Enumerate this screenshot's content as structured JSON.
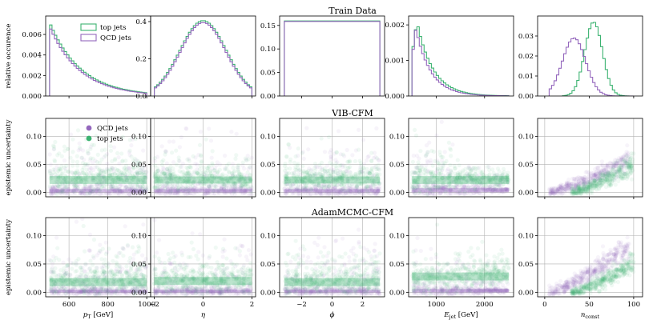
{
  "figure": {
    "row_titles": [
      "Train Data",
      "VIB-CFM",
      "AdamMCMC-CFM"
    ],
    "row_ylabels": [
      "relative occurence",
      "epistemic uncertainty",
      "epistemic uncertainty"
    ],
    "legend_row0": [
      "top jets",
      "QCD jets"
    ],
    "legend_row1": [
      "QCD jets",
      "top jets"
    ],
    "xlabels": [
      "p_T [GeV]",
      "η",
      "ϕ",
      "E_jet [GeV]",
      "n_const"
    ]
  },
  "colors": {
    "qcd": "#9467bd",
    "top": "#3cb371",
    "grid": "#b0b0b0",
    "axis": "#000000"
  },
  "chart_data": [
    {
      "type": "histogram",
      "row": 0,
      "col": 0,
      "xlabel": "p_T [GeV]",
      "ylabel": "relative occurence",
      "xlim": [
        480,
        1020
      ],
      "ylim": [
        0,
        0.0078
      ],
      "xticks": [
        600,
        800,
        1000
      ],
      "xtick_labels_shown": false,
      "yticks": [
        0.0,
        0.002,
        0.004,
        0.006
      ],
      "ytick_labels": [
        "0.000",
        "0.002",
        "0.004",
        "0.006"
      ],
      "series": [
        {
          "name": "top jets",
          "color_key": "top",
          "bin_edges": [
            500,
            1000
          ],
          "nbins": 40,
          "model": "exp",
          "params": {
            "a": 0.0072,
            "tau": 160
          }
        },
        {
          "name": "QCD jets",
          "color_key": "qcd",
          "bin_edges": [
            500,
            1000
          ],
          "nbins": 40,
          "model": "exp",
          "params": {
            "a": 0.0068,
            "tau": 155
          }
        }
      ]
    },
    {
      "type": "histogram",
      "row": 0,
      "col": 1,
      "xlabel": "η",
      "xlim": [
        -2.15,
        2.15
      ],
      "ylim": [
        0,
        0.43
      ],
      "xticks": [
        -2,
        0,
        2
      ],
      "xtick_labels_shown": false,
      "yticks": [
        0.0,
        0.2,
        0.4
      ],
      "ytick_labels": [
        "0.0",
        "0.2",
        "0.4"
      ],
      "series": [
        {
          "name": "top jets",
          "color_key": "top",
          "bin_edges": [
            -2,
            2
          ],
          "nbins": 40,
          "model": "gauss",
          "params": {
            "a": 0.405,
            "mu": 0,
            "sigma": 0.95
          }
        },
        {
          "name": "QCD jets",
          "color_key": "qcd",
          "bin_edges": [
            -2,
            2
          ],
          "nbins": 40,
          "model": "gauss",
          "params": {
            "a": 0.395,
            "mu": 0,
            "sigma": 0.93
          }
        }
      ]
    },
    {
      "type": "histogram",
      "row": 0,
      "col": 2,
      "xlabel": "ϕ",
      "xlim": [
        -3.45,
        3.45
      ],
      "ylim": [
        0,
        0.17
      ],
      "xticks": [
        -2,
        0,
        2
      ],
      "xtick_labels_shown": false,
      "yticks": [
        0.0,
        0.05,
        0.1,
        0.15
      ],
      "ytick_labels": [
        "0.00",
        "0.05",
        "0.10",
        "0.15"
      ],
      "series": [
        {
          "name": "top jets",
          "color_key": "top",
          "bin_edges": [
            -3.14,
            3.14
          ],
          "nbins": 40,
          "model": "flat",
          "params": {
            "a": 0.1595
          }
        },
        {
          "name": "QCD jets",
          "color_key": "qcd",
          "bin_edges": [
            -3.14,
            3.14
          ],
          "nbins": 40,
          "model": "flat",
          "params": {
            "a": 0.1585
          }
        }
      ]
    },
    {
      "type": "histogram",
      "row": 0,
      "col": 3,
      "xlabel": "E_jet [GeV]",
      "xlim": [
        430,
        2600
      ],
      "ylim": [
        0,
        0.00225
      ],
      "xticks": [
        1000,
        2000
      ],
      "xtick_labels_shown": false,
      "yticks": [
        0.0,
        0.001,
        0.002
      ],
      "ytick_labels": [
        "0.000",
        "0.001",
        "0.002"
      ],
      "series": [
        {
          "name": "top jets",
          "color_key": "top",
          "bin_edges": [
            500,
            2500
          ],
          "nbins": 40,
          "model": "rise_exp",
          "params": {
            "a": 0.0021,
            "peak": 600,
            "tau": 330
          }
        },
        {
          "name": "QCD jets",
          "color_key": "qcd",
          "bin_edges": [
            500,
            2500
          ],
          "nbins": 40,
          "model": "rise_exp",
          "params": {
            "a": 0.0019,
            "peak": 580,
            "tau": 310
          }
        }
      ]
    },
    {
      "type": "histogram",
      "row": 0,
      "col": 4,
      "xlabel": "n_const",
      "xlim": [
        -8,
        110
      ],
      "ylim": [
        0,
        0.04
      ],
      "xticks": [
        0,
        50,
        100
      ],
      "xtick_labels_shown": false,
      "yticks": [
        0.0,
        0.01,
        0.02,
        0.03
      ],
      "ytick_labels": [
        "0.00",
        "0.01",
        "0.02",
        "0.03"
      ],
      "series": [
        {
          "name": "top jets",
          "color_key": "top",
          "bin_edges": [
            20,
            100
          ],
          "nbins": 30,
          "model": "gauss",
          "params": {
            "a": 0.037,
            "mu": 55,
            "sigma": 10
          }
        },
        {
          "name": "QCD jets",
          "color_key": "qcd",
          "bin_edges": [
            5,
            100
          ],
          "nbins": 35,
          "model": "gauss",
          "params": {
            "a": 0.029,
            "mu": 33,
            "sigma": 13
          }
        }
      ]
    },
    {
      "type": "scatter",
      "row": 1,
      "col": 0,
      "xlabel": "p_T [GeV]",
      "ylabel": "epistemic uncertainty",
      "xlim": [
        480,
        1020
      ],
      "ylim": [
        -0.008,
        0.132
      ],
      "xticks": [
        600,
        800,
        1000
      ],
      "xtick_labels_shown": false,
      "yticks": [
        0.0,
        0.05,
        0.1
      ],
      "ytick_labels": [
        "0.00",
        "0.05",
        "0.10"
      ],
      "series": [
        {
          "name": "QCD jets",
          "color_key": "qcd",
          "x_range": [
            500,
            1000
          ],
          "model": "band",
          "params": {
            "center": 0.003,
            "spread": 0.004,
            "tail": 0.085
          }
        },
        {
          "name": "top jets",
          "color_key": "top",
          "x_range": [
            500,
            1000
          ],
          "model": "band",
          "params": {
            "center": 0.022,
            "spread": 0.01,
            "tail": 0.06
          }
        }
      ]
    },
    {
      "type": "scatter",
      "row": 1,
      "col": 1,
      "xlabel": "η",
      "xlim": [
        -2.15,
        2.15
      ],
      "ylim": [
        -0.008,
        0.132
      ],
      "xticks": [
        -2,
        0,
        2
      ],
      "xtick_labels_shown": false,
      "yticks": [
        0.0,
        0.05,
        0.1
      ],
      "ytick_labels": [
        "0.00",
        "0.05",
        "0.10"
      ],
      "series": [
        {
          "name": "QCD jets",
          "color_key": "qcd",
          "x_range": [
            -2,
            2
          ],
          "model": "band",
          "params": {
            "center": 0.003,
            "spread": 0.004,
            "tail": 0.085
          }
        },
        {
          "name": "top jets",
          "color_key": "top",
          "x_range": [
            -2,
            2
          ],
          "model": "band",
          "params": {
            "center": 0.022,
            "spread": 0.009,
            "tail": 0.05
          }
        }
      ]
    },
    {
      "type": "scatter",
      "row": 1,
      "col": 2,
      "xlabel": "ϕ",
      "xlim": [
        -3.45,
        3.45
      ],
      "ylim": [
        -0.008,
        0.132
      ],
      "xticks": [
        -2,
        0,
        2
      ],
      "xtick_labels_shown": false,
      "yticks": [
        0.0,
        0.05,
        0.1
      ],
      "ytick_labels": [
        "0.00",
        "0.05",
        "0.10"
      ],
      "series": [
        {
          "name": "QCD jets",
          "color_key": "qcd",
          "x_range": [
            -3.14,
            3.14
          ],
          "model": "band",
          "params": {
            "center": 0.003,
            "spread": 0.004,
            "tail": 0.085
          }
        },
        {
          "name": "top jets",
          "color_key": "top",
          "x_range": [
            -3.14,
            3.14
          ],
          "model": "band",
          "params": {
            "center": 0.022,
            "spread": 0.009,
            "tail": 0.05
          }
        }
      ]
    },
    {
      "type": "scatter",
      "row": 1,
      "col": 3,
      "xlabel": "E_jet [GeV]",
      "xlim": [
        430,
        2600
      ],
      "ylim": [
        -0.008,
        0.132
      ],
      "xticks": [
        1000,
        2000
      ],
      "xtick_labels_shown": false,
      "yticks": [
        0.0,
        0.05,
        0.1
      ],
      "ytick_labels": [
        "0.00",
        "0.05",
        "0.10"
      ],
      "series": [
        {
          "name": "QCD jets",
          "color_key": "qcd",
          "x_range": [
            500,
            2500
          ],
          "model": "decay",
          "params": {
            "center": 0.004,
            "spread": 0.005,
            "tail": 0.09
          }
        },
        {
          "name": "top jets",
          "color_key": "top",
          "x_range": [
            500,
            2500
          ],
          "model": "decay",
          "params": {
            "center": 0.022,
            "spread": 0.01,
            "tail": 0.06
          }
        }
      ]
    },
    {
      "type": "scatter",
      "row": 1,
      "col": 4,
      "xlabel": "n_const",
      "xlim": [
        -8,
        110
      ],
      "ylim": [
        -0.008,
        0.132
      ],
      "xticks": [
        0,
        50,
        100
      ],
      "xtick_labels_shown": false,
      "yticks": [
        0.0,
        0.05,
        0.1
      ],
      "ytick_labels": [
        "0.00",
        "0.05",
        "0.10"
      ],
      "series": [
        {
          "name": "QCD jets",
          "color_key": "qcd",
          "x_range": [
            5,
            95
          ],
          "model": "rise",
          "params": {
            "center": 0.0,
            "spread": 0.006,
            "tail": 0.06
          }
        },
        {
          "name": "top jets",
          "color_key": "top",
          "x_range": [
            30,
            100
          ],
          "model": "rise",
          "params": {
            "center": 0.0,
            "spread": 0.006,
            "tail": 0.05
          }
        }
      ]
    },
    {
      "type": "scatter",
      "row": 2,
      "col": 0,
      "xlabel": "p_T [GeV]",
      "ylabel": "epistemic uncertainty",
      "xlim": [
        480,
        1020
      ],
      "ylim": [
        -0.008,
        0.132
      ],
      "xticks": [
        600,
        800,
        1000
      ],
      "xtick_labels": [
        "600",
        "800",
        "1000"
      ],
      "yticks": [
        0.0,
        0.05,
        0.1
      ],
      "ytick_labels": [
        "0.00",
        "0.05",
        "0.10"
      ],
      "series": [
        {
          "name": "QCD jets",
          "color_key": "qcd",
          "x_range": [
            500,
            1000
          ],
          "model": "band",
          "params": {
            "center": 0.002,
            "spread": 0.003,
            "tail": 0.09
          }
        },
        {
          "name": "top jets",
          "color_key": "top",
          "x_range": [
            500,
            1000
          ],
          "model": "band",
          "params": {
            "center": 0.018,
            "spread": 0.01,
            "tail": 0.06
          }
        }
      ]
    },
    {
      "type": "scatter",
      "row": 2,
      "col": 1,
      "xlabel": "η",
      "xlim": [
        -2.15,
        2.15
      ],
      "ylim": [
        -0.008,
        0.132
      ],
      "xticks": [
        -2,
        0,
        2
      ],
      "xtick_labels": [
        "−2",
        "0",
        "2"
      ],
      "yticks": [
        0.0,
        0.05,
        0.1
      ],
      "ytick_labels": [
        "0.00",
        "0.05",
        "0.10"
      ],
      "series": [
        {
          "name": "QCD jets",
          "color_key": "qcd",
          "x_range": [
            -2,
            2
          ],
          "model": "band",
          "params": {
            "center": 0.002,
            "spread": 0.003,
            "tail": 0.09
          }
        },
        {
          "name": "top jets",
          "color_key": "top",
          "x_range": [
            -2,
            2
          ],
          "model": "band",
          "params": {
            "center": 0.02,
            "spread": 0.01,
            "tail": 0.05
          }
        }
      ]
    },
    {
      "type": "scatter",
      "row": 2,
      "col": 2,
      "xlabel": "ϕ",
      "xlim": [
        -3.45,
        3.45
      ],
      "ylim": [
        -0.008,
        0.132
      ],
      "xticks": [
        -2,
        0,
        2
      ],
      "xtick_labels": [
        "−2",
        "0",
        "2"
      ],
      "yticks": [
        0.0,
        0.05,
        0.1
      ],
      "ytick_labels": [
        "0.00",
        "0.05",
        "0.10"
      ],
      "series": [
        {
          "name": "QCD jets",
          "color_key": "qcd",
          "x_range": [
            -3.14,
            3.14
          ],
          "model": "band",
          "params": {
            "center": 0.002,
            "spread": 0.003,
            "tail": 0.09
          }
        },
        {
          "name": "top jets",
          "color_key": "top",
          "x_range": [
            -3.14,
            3.14
          ],
          "model": "band",
          "params": {
            "center": 0.018,
            "spread": 0.01,
            "tail": 0.05
          }
        }
      ]
    },
    {
      "type": "scatter",
      "row": 2,
      "col": 3,
      "xlabel": "E_jet [GeV]",
      "xlim": [
        430,
        2600
      ],
      "ylim": [
        -0.008,
        0.132
      ],
      "xticks": [
        1000,
        2000
      ],
      "xtick_labels": [
        "1000",
        "2000"
      ],
      "yticks": [
        0.0,
        0.05,
        0.1
      ],
      "ytick_labels": [
        "0.00",
        "0.05",
        "0.10"
      ],
      "series": [
        {
          "name": "QCD jets",
          "color_key": "qcd",
          "x_range": [
            500,
            2500
          ],
          "model": "decay",
          "params": {
            "center": 0.003,
            "spread": 0.004,
            "tail": 0.09
          }
        },
        {
          "name": "top jets",
          "color_key": "top",
          "x_range": [
            500,
            2500
          ],
          "model": "grow",
          "params": {
            "center": 0.02,
            "spread": 0.01,
            "tail": 0.05
          }
        }
      ]
    },
    {
      "type": "scatter",
      "row": 2,
      "col": 4,
      "xlabel": "n_const",
      "xlim": [
        -8,
        110
      ],
      "ylim": [
        -0.008,
        0.132
      ],
      "xticks": [
        0,
        50,
        100
      ],
      "xtick_labels": [
        "0",
        "50",
        "100"
      ],
      "yticks": [
        0.0,
        0.05,
        0.1
      ],
      "ytick_labels": [
        "0.00",
        "0.05",
        "0.10"
      ],
      "series": [
        {
          "name": "QCD jets",
          "color_key": "qcd",
          "x_range": [
            5,
            95
          ],
          "model": "rise",
          "params": {
            "center": 0.0,
            "spread": 0.007,
            "tail": 0.08
          }
        },
        {
          "name": "top jets",
          "color_key": "top",
          "x_range": [
            30,
            100
          ],
          "model": "rise",
          "params": {
            "center": 0.0,
            "spread": 0.006,
            "tail": 0.05
          }
        }
      ]
    }
  ]
}
